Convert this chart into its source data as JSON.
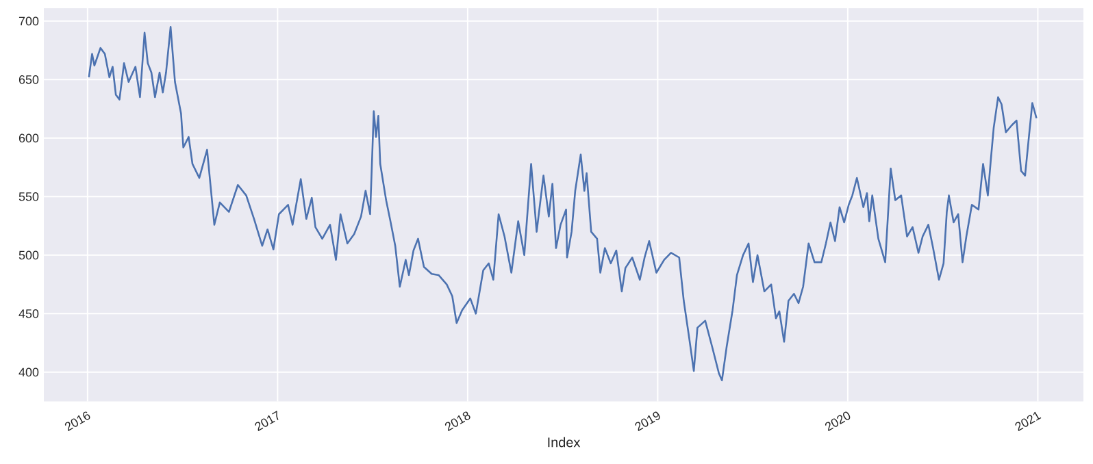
{
  "chart_data": {
    "type": "line",
    "xlabel": "Index",
    "xlim": [
      2015.77,
      2021.24
    ],
    "ylim": [
      375,
      711
    ],
    "xticks": [
      2016,
      2017,
      2018,
      2019,
      2020,
      2021
    ],
    "yticks": [
      400,
      450,
      500,
      550,
      600,
      650,
      700
    ],
    "grid": true,
    "x": [
      2016.007,
      2016.024,
      2016.036,
      2016.068,
      2016.091,
      2016.115,
      2016.132,
      2016.149,
      2016.168,
      2016.192,
      2016.216,
      2016.252,
      2016.276,
      2016.3,
      2016.317,
      2016.336,
      2016.355,
      2016.379,
      2016.396,
      2016.413,
      2016.437,
      2016.46,
      2016.492,
      2016.504,
      2016.532,
      2016.552,
      2016.588,
      2016.629,
      2016.667,
      2016.696,
      2016.744,
      2016.791,
      2016.835,
      2016.876,
      2016.919,
      2016.947,
      2016.978,
      2017.007,
      2017.055,
      2017.079,
      2017.122,
      2017.151,
      2017.18,
      2017.199,
      2017.235,
      2017.276,
      2017.307,
      2017.331,
      2017.367,
      2017.403,
      2017.439,
      2017.463,
      2017.487,
      2017.506,
      2017.518,
      2017.53,
      2017.54,
      2017.571,
      2017.595,
      2017.619,
      2017.643,
      2017.674,
      2017.691,
      2017.715,
      2017.739,
      2017.77,
      2017.811,
      2017.847,
      2017.89,
      2017.919,
      2017.942,
      2017.971,
      2018.014,
      2018.043,
      2018.082,
      2018.111,
      2018.135,
      2018.163,
      2018.194,
      2018.23,
      2018.266,
      2018.298,
      2018.334,
      2018.363,
      2018.399,
      2018.427,
      2018.446,
      2018.465,
      2018.489,
      2018.518,
      2018.523,
      2018.547,
      2018.566,
      2018.595,
      2018.614,
      2018.626,
      2018.65,
      2018.681,
      2018.698,
      2018.722,
      2018.753,
      2018.782,
      2018.811,
      2018.83,
      2018.866,
      2018.906,
      2018.931,
      2018.955,
      2018.993,
      2019.034,
      2019.07,
      2019.113,
      2019.137,
      2019.165,
      2019.19,
      2019.209,
      2019.25,
      2019.286,
      2019.322,
      2019.338,
      2019.363,
      2019.394,
      2019.417,
      2019.449,
      2019.478,
      2019.501,
      2019.525,
      2019.561,
      2019.597,
      2019.622,
      2019.64,
      2019.665,
      2019.688,
      2019.717,
      2019.741,
      2019.765,
      2019.794,
      2019.825,
      2019.861,
      2019.885,
      2019.909,
      2019.933,
      2019.957,
      2019.981,
      2020.005,
      2020.024,
      2020.048,
      2020.082,
      2020.101,
      2020.113,
      2020.129,
      2020.161,
      2020.197,
      2020.226,
      2020.25,
      2020.281,
      2020.312,
      2020.341,
      2020.372,
      2020.394,
      2020.424,
      2020.449,
      2020.48,
      2020.504,
      2020.521,
      2020.532,
      2020.557,
      2020.581,
      2020.604,
      2020.624,
      2020.653,
      2020.688,
      2020.712,
      2020.737,
      2020.753,
      2020.768,
      2020.791,
      2020.809,
      2020.832,
      2020.863,
      2020.888,
      2020.912,
      2020.933,
      2020.953,
      2020.971,
      2020.993
    ],
    "series": [
      {
        "color": "#4c72b0",
        "values": [
          652,
          672,
          662,
          677,
          672,
          652,
          661,
          637,
          633,
          664,
          648,
          661,
          635,
          690,
          664,
          656,
          635,
          656,
          639,
          656,
          695,
          648,
          621,
          592,
          601,
          578,
          566,
          590,
          526,
          545,
          537,
          560,
          551,
          531,
          508,
          522,
          505,
          535,
          543,
          526,
          565,
          531,
          549,
          524,
          514,
          526,
          496,
          535,
          510,
          518,
          533,
          555,
          535,
          623,
          601,
          619,
          578,
          547,
          528,
          508,
          473,
          496,
          483,
          504,
          514,
          490,
          484,
          483,
          475,
          465,
          442,
          453,
          463,
          450,
          487,
          493,
          479,
          535,
          516,
          485,
          529,
          500,
          578,
          520,
          568,
          533,
          561,
          506,
          526,
          539,
          498,
          520,
          555,
          586,
          555,
          570,
          520,
          514,
          485,
          506,
          493,
          504,
          469,
          489,
          498,
          479,
          498,
          512,
          485,
          496,
          502,
          498,
          461,
          430,
          401,
          438,
          444,
          422,
          399,
          393,
          422,
          453,
          483,
          500,
          510,
          477,
          500,
          469,
          475,
          446,
          452,
          426,
          461,
          467,
          459,
          473,
          510,
          494,
          494,
          510,
          528,
          512,
          541,
          528,
          543,
          551,
          566,
          541,
          553,
          529,
          551,
          514,
          494,
          574,
          547,
          551,
          516,
          524,
          502,
          516,
          526,
          506,
          479,
          493,
          537,
          551,
          528,
          535,
          494,
          516,
          543,
          539,
          578,
          551,
          582,
          609,
          635,
          629,
          605,
          611,
          615,
          572,
          568,
          601,
          630,
          617
        ]
      }
    ]
  }
}
